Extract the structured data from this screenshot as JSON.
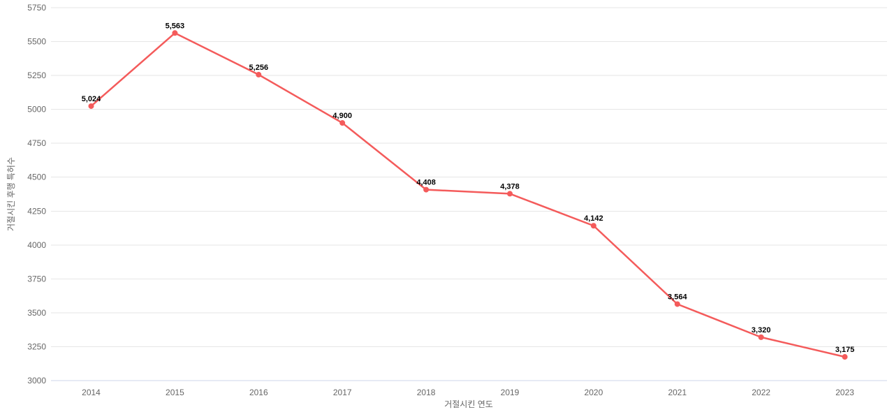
{
  "chart_data": {
    "type": "line",
    "title": "",
    "xlabel": "거절시킨 연도",
    "ylabel": "거절시킨 후행 특허수",
    "categories": [
      "2014",
      "2015",
      "2016",
      "2017",
      "2018",
      "2019",
      "2020",
      "2021",
      "2022",
      "2023"
    ],
    "series": [
      {
        "values": [
          5024,
          5563,
          5256,
          4900,
          4408,
          4378,
          4142,
          3564,
          3320,
          3175
        ],
        "labels": [
          "5,024",
          "5,563",
          "5,256",
          "4,900",
          "4,408",
          "4,378",
          "4,142",
          "3,564",
          "3,320",
          "3,175"
        ]
      }
    ],
    "ylim": [
      3000,
      5750
    ],
    "ytick_step": 250,
    "yticks": [
      "3000",
      "3250",
      "3500",
      "3750",
      "4000",
      "4250",
      "4500",
      "4750",
      "5000",
      "5250",
      "5500",
      "5750"
    ],
    "grid": true,
    "legend_position": "none",
    "colors": {
      "line": "#f45b5b",
      "marker": "#f45b5b",
      "gridline": "#e6e6e6",
      "axis_line": "#ccd6eb",
      "tick_label": "#666666",
      "axis_title": "#666666",
      "data_label": "#000000",
      "background": "#ffffff"
    }
  }
}
